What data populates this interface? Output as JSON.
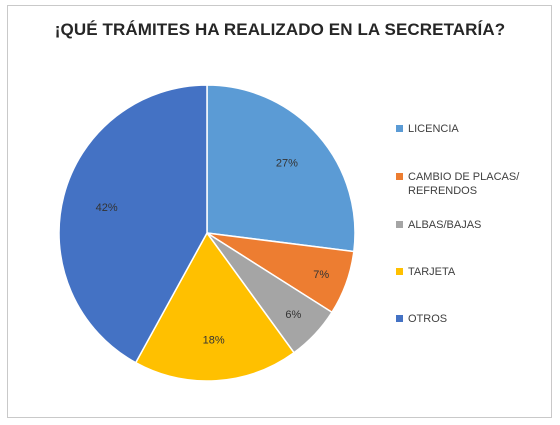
{
  "chart_data": {
    "type": "pie",
    "title": "¡QUÉ TRÁMITES HA REALIZADO EN LA SECRETARÍA?",
    "categories": [
      "LICENCIA",
      "CAMBIO DE PLACAS/ REFRENDOS",
      "ALBAS/BAJAS",
      "TARJETA",
      "OTROS"
    ],
    "values": [
      27,
      7,
      6,
      18,
      42
    ],
    "value_labels": [
      "27%",
      "7%",
      "6%",
      "18%",
      "42%"
    ],
    "colors": [
      "#5b9bd5",
      "#ed7d31",
      "#a5a5a5",
      "#ffc000",
      "#4472c4"
    ],
    "legend_position": "right",
    "start_angle": "top, clockwise"
  }
}
